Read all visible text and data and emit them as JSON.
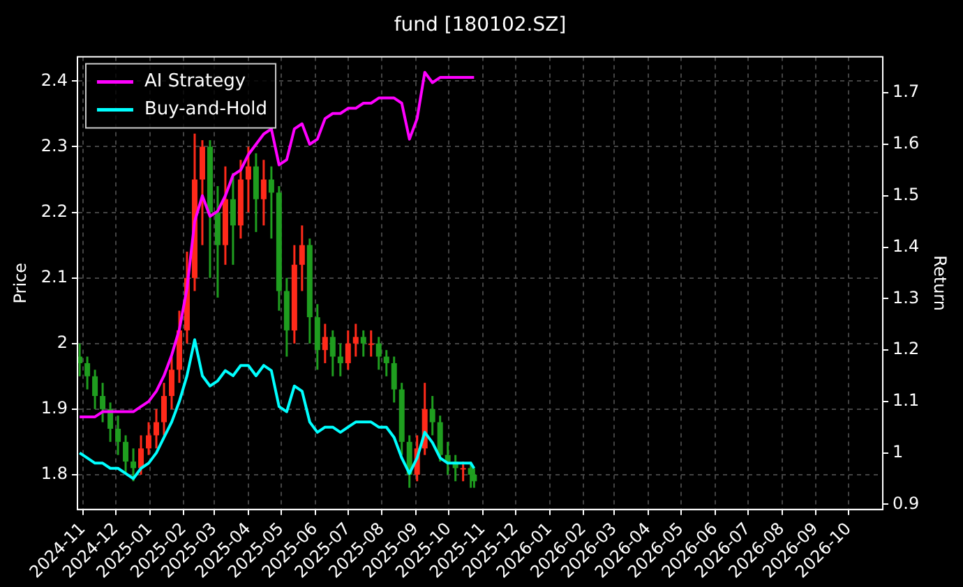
{
  "chart_data": {
    "type": "candlestick",
    "title": "fund [180102.SZ]",
    "ylabel": "Price",
    "y2label": "Return",
    "x": [
      "2024-10-29",
      "2024-11-05",
      "2024-11-12",
      "2024-11-19",
      "2024-11-26",
      "2024-12-03",
      "2024-12-10",
      "2024-12-17",
      "2024-12-24",
      "2024-12-31",
      "2025-01-07",
      "2025-01-14",
      "2025-01-21",
      "2025-01-28",
      "2025-02-04",
      "2025-02-11",
      "2025-02-18",
      "2025-02-25",
      "2025-03-04",
      "2025-03-11",
      "2025-03-18",
      "2025-03-25",
      "2025-04-01",
      "2025-04-08",
      "2025-04-15",
      "2025-04-22",
      "2025-04-29",
      "2025-05-06",
      "2025-05-13",
      "2025-05-20",
      "2025-05-27",
      "2025-06-03",
      "2025-06-10",
      "2025-06-17",
      "2025-06-24",
      "2025-07-01",
      "2025-07-08",
      "2025-07-15",
      "2025-07-22",
      "2025-07-29",
      "2025-08-05",
      "2025-08-12",
      "2025-08-19",
      "2025-08-26",
      "2025-09-02",
      "2025-09-09",
      "2025-09-16",
      "2025-09-23",
      "2025-09-30",
      "2025-10-07",
      "2025-10-14",
      "2025-10-21",
      "2025-10-24"
    ],
    "ohlc": [
      [
        1.98,
        2.0,
        1.95,
        1.97
      ],
      [
        1.97,
        1.98,
        1.93,
        1.95
      ],
      [
        1.95,
        1.96,
        1.9,
        1.92
      ],
      [
        1.92,
        1.94,
        1.88,
        1.9
      ],
      [
        1.9,
        1.91,
        1.85,
        1.87
      ],
      [
        1.87,
        1.89,
        1.83,
        1.85
      ],
      [
        1.85,
        1.86,
        1.8,
        1.82
      ],
      [
        1.82,
        1.84,
        1.79,
        1.81
      ],
      [
        1.81,
        1.86,
        1.8,
        1.84
      ],
      [
        1.84,
        1.88,
        1.83,
        1.86
      ],
      [
        1.86,
        1.9,
        1.84,
        1.88
      ],
      [
        1.88,
        1.94,
        1.86,
        1.92
      ],
      [
        1.92,
        1.98,
        1.9,
        1.96
      ],
      [
        1.96,
        2.05,
        1.94,
        2.02
      ],
      [
        2.02,
        2.14,
        2.0,
        2.1
      ],
      [
        2.1,
        2.32,
        2.08,
        2.25
      ],
      [
        2.25,
        2.31,
        2.15,
        2.3
      ],
      [
        2.3,
        2.31,
        2.1,
        2.2
      ],
      [
        2.2,
        2.24,
        2.07,
        2.15
      ],
      [
        2.15,
        2.27,
        2.12,
        2.22
      ],
      [
        2.22,
        2.26,
        2.12,
        2.18
      ],
      [
        2.18,
        2.28,
        2.16,
        2.25
      ],
      [
        2.25,
        2.3,
        2.2,
        2.27
      ],
      [
        2.27,
        2.29,
        2.17,
        2.22
      ],
      [
        2.22,
        2.28,
        2.18,
        2.25
      ],
      [
        2.25,
        2.27,
        2.16,
        2.23
      ],
      [
        2.23,
        2.24,
        2.05,
        2.08
      ],
      [
        2.08,
        2.1,
        1.98,
        2.02
      ],
      [
        2.02,
        2.15,
        2.0,
        2.12
      ],
      [
        2.12,
        2.18,
        2.08,
        2.15
      ],
      [
        2.15,
        2.16,
        2.0,
        2.04
      ],
      [
        2.04,
        2.06,
        1.96,
        1.99
      ],
      [
        1.99,
        2.03,
        1.97,
        2.01
      ],
      [
        2.01,
        2.02,
        1.95,
        1.98
      ],
      [
        1.98,
        2.0,
        1.95,
        1.97
      ],
      [
        1.97,
        2.02,
        1.96,
        2.0
      ],
      [
        2.0,
        2.03,
        1.98,
        2.01
      ],
      [
        2.01,
        2.02,
        1.98,
        2.0
      ],
      [
        2.0,
        2.02,
        1.98,
        2.0
      ],
      [
        2.0,
        2.01,
        1.96,
        1.98
      ],
      [
        1.98,
        1.99,
        1.95,
        1.97
      ],
      [
        1.97,
        1.98,
        1.91,
        1.93
      ],
      [
        1.93,
        1.94,
        1.83,
        1.85
      ],
      [
        1.85,
        1.86,
        1.78,
        1.8
      ],
      [
        1.8,
        1.86,
        1.79,
        1.84
      ],
      [
        1.84,
        1.94,
        1.83,
        1.9
      ],
      [
        1.9,
        1.92,
        1.86,
        1.88
      ],
      [
        1.88,
        1.89,
        1.82,
        1.83
      ],
      [
        1.83,
        1.85,
        1.8,
        1.82
      ],
      [
        1.82,
        1.83,
        1.79,
        1.81
      ],
      [
        1.81,
        1.82,
        1.79,
        1.81
      ],
      [
        1.81,
        1.82,
        1.78,
        1.8
      ],
      [
        1.8,
        1.81,
        1.78,
        1.79
      ]
    ],
    "series": [
      {
        "name": "AI Strategy",
        "type": "line",
        "axis": "y2",
        "color": "#ff00ff",
        "values": [
          1.07,
          1.07,
          1.07,
          1.08,
          1.08,
          1.08,
          1.08,
          1.08,
          1.09,
          1.1,
          1.12,
          1.15,
          1.19,
          1.24,
          1.32,
          1.45,
          1.5,
          1.46,
          1.47,
          1.5,
          1.54,
          1.55,
          1.58,
          1.6,
          1.62,
          1.63,
          1.56,
          1.57,
          1.63,
          1.64,
          1.6,
          1.61,
          1.65,
          1.66,
          1.66,
          1.67,
          1.67,
          1.68,
          1.68,
          1.69,
          1.69,
          1.69,
          1.68,
          1.61,
          1.65,
          1.74,
          1.72,
          1.73,
          1.73,
          1.73,
          1.73,
          1.73,
          1.73
        ]
      },
      {
        "name": "Buy-and-Hold",
        "type": "line",
        "axis": "y2",
        "color": "#00ffff",
        "values": [
          1.0,
          0.99,
          0.98,
          0.98,
          0.97,
          0.97,
          0.96,
          0.95,
          0.97,
          0.98,
          1.0,
          1.03,
          1.06,
          1.1,
          1.15,
          1.22,
          1.15,
          1.13,
          1.14,
          1.16,
          1.15,
          1.17,
          1.17,
          1.15,
          1.17,
          1.16,
          1.09,
          1.08,
          1.13,
          1.12,
          1.06,
          1.04,
          1.05,
          1.05,
          1.04,
          1.05,
          1.06,
          1.06,
          1.06,
          1.05,
          1.05,
          1.03,
          0.99,
          0.96,
          0.99,
          1.04,
          1.02,
          0.99,
          0.98,
          0.98,
          0.98,
          0.98,
          0.97
        ]
      }
    ],
    "xlim": [
      "2024-10-27",
      "2026-11-01"
    ],
    "xticks": [
      "2024-11",
      "2024-12",
      "2025-01",
      "2025-02",
      "2025-03",
      "2025-04",
      "2025-05",
      "2025-06",
      "2025-07",
      "2025-08",
      "2025-09",
      "2025-10",
      "2025-11",
      "2025-12",
      "2026-01",
      "2026-02",
      "2026-03",
      "2026-04",
      "2026-05",
      "2026-06",
      "2026-07",
      "2026-08",
      "2026-09",
      "2026-10"
    ],
    "ylim": [
      1.747,
      2.437
    ],
    "yticks": [
      1.8,
      1.9,
      2.0,
      2.1,
      2.2,
      2.3,
      2.4
    ],
    "y2lim": [
      0.89,
      1.77
    ],
    "y2ticks": [
      0.9,
      1.0,
      1.1,
      1.2,
      1.3,
      1.4,
      1.5,
      1.6,
      1.7
    ],
    "grid": true,
    "legend": "top left"
  }
}
